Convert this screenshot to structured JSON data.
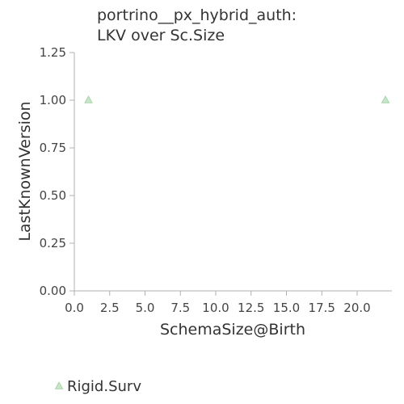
{
  "chart_data": {
    "type": "scatter",
    "title_lines": [
      "portrino__px_hybrid_auth:",
      "LKV over Sc.Size"
    ],
    "xlabel": "SchemaSize@Birth",
    "ylabel": "LastKnownVersion",
    "xlim": [
      0,
      22
    ],
    "ylim": [
      0,
      1.25
    ],
    "x_ticks": [
      0,
      2.5,
      5,
      7.5,
      10,
      12.5,
      15,
      17.5,
      20
    ],
    "x_tick_labels": [
      "0.0",
      "2.5",
      "5.0",
      "7.5",
      "10.0",
      "12.5",
      "15.0",
      "17.5",
      "20.0"
    ],
    "y_ticks": [
      0,
      0.25,
      0.5,
      0.75,
      1.0,
      1.25
    ],
    "y_tick_labels": [
      "0.00",
      "0.25",
      "0.50",
      "0.75",
      "1.00",
      "1.25"
    ],
    "grid": false,
    "legend_position": "bottom-left",
    "series": [
      {
        "name": "Rigid.Surv",
        "marker": "triangle",
        "color": "#a5d6a7",
        "points": [
          {
            "x": 1,
            "y": 1.0
          },
          {
            "x": 22,
            "y": 1.0
          }
        ]
      }
    ]
  }
}
